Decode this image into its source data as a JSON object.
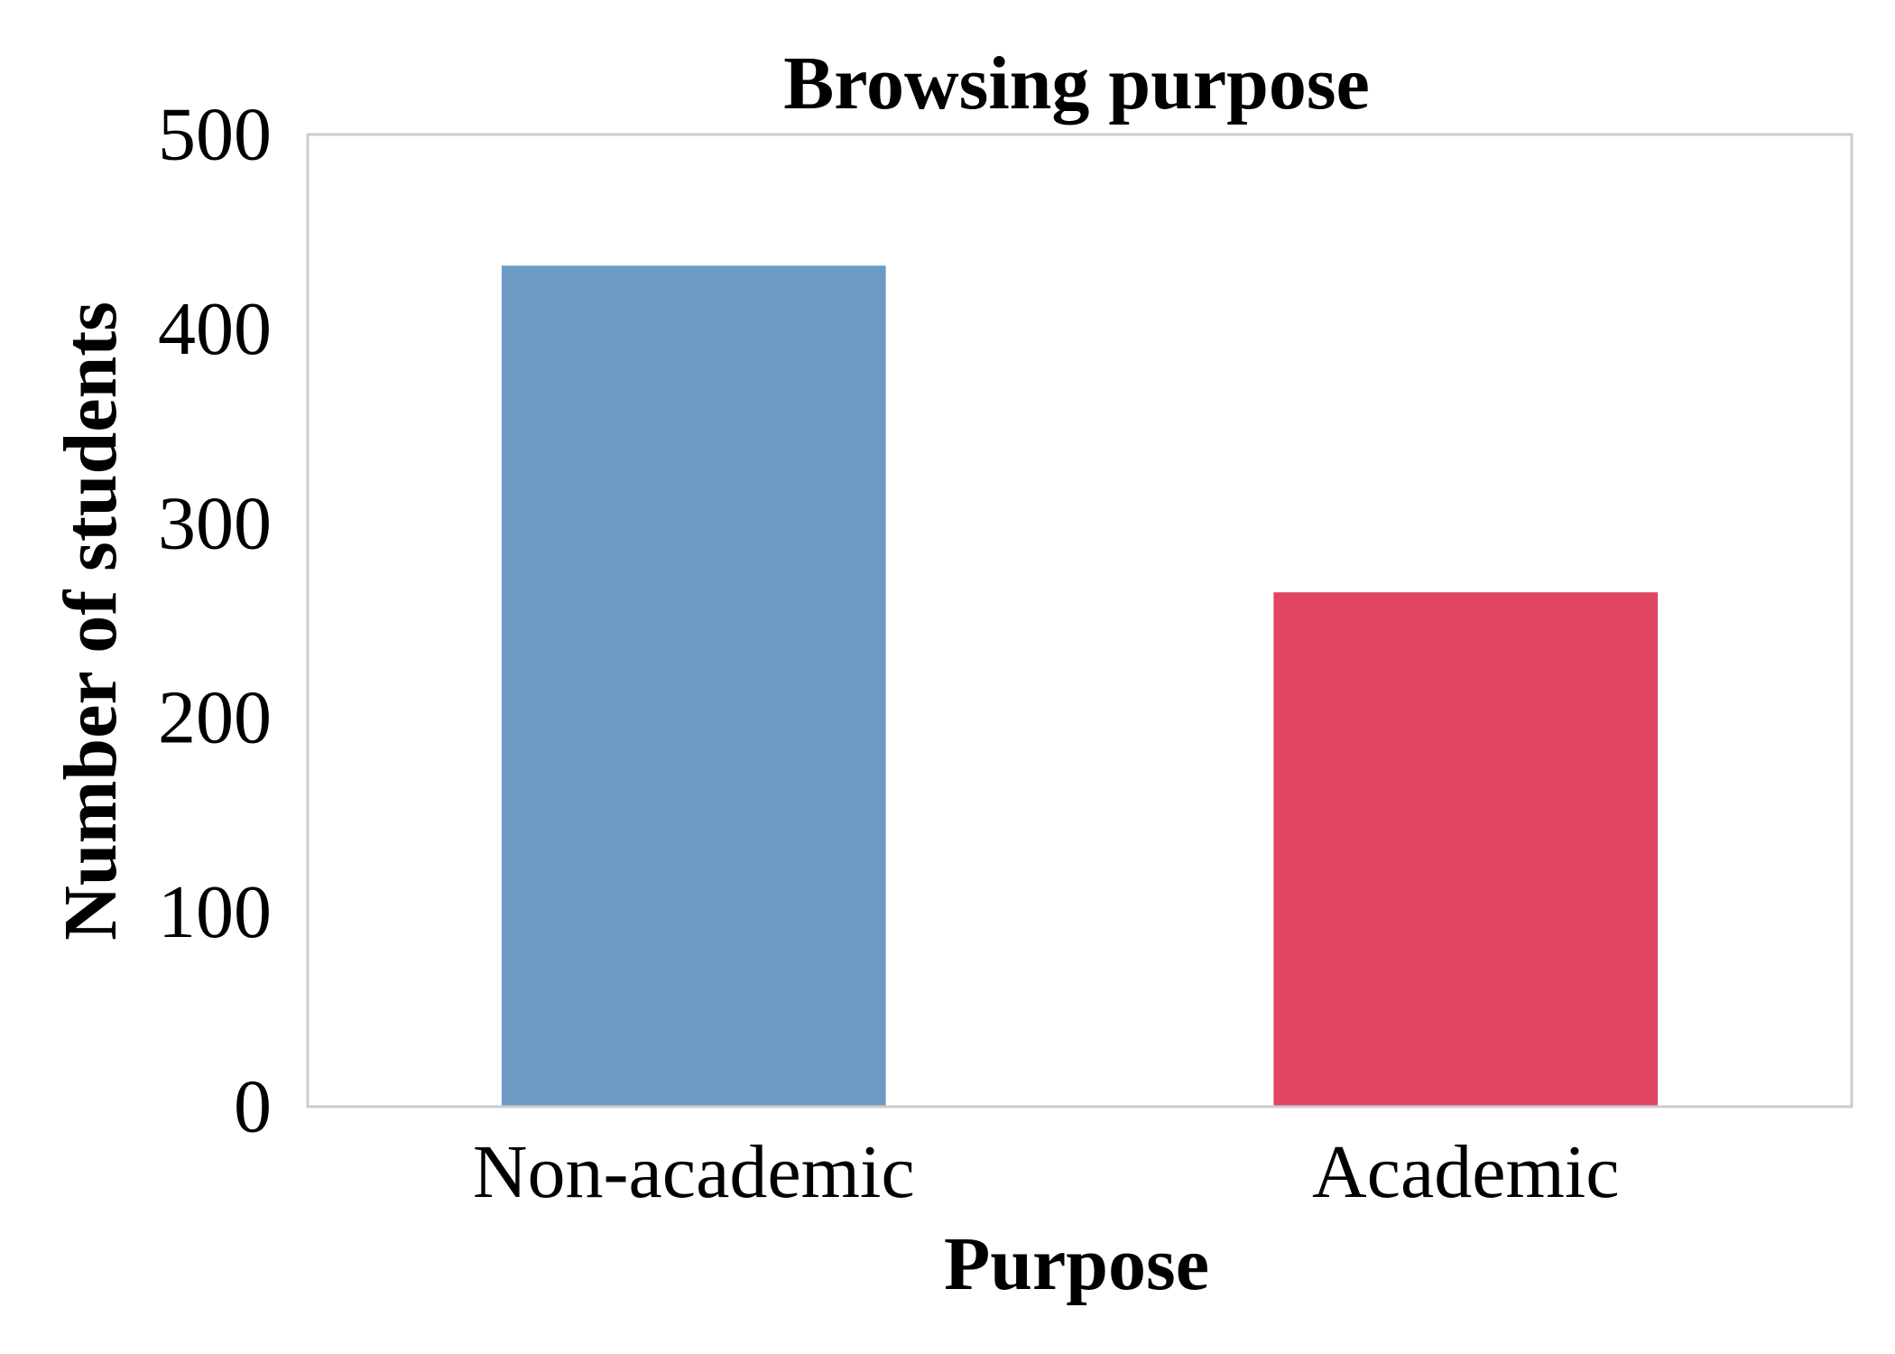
{
  "chart_data": {
    "type": "bar",
    "title": "Browsing purpose",
    "xlabel": "Purpose",
    "ylabel": "Number of students",
    "categories": [
      "Non-academic",
      "Academic"
    ],
    "values": [
      433,
      265
    ],
    "colors": [
      "#6b9bc3",
      "#e04563"
    ],
    "ylim": [
      0,
      500
    ],
    "yticks": [
      0,
      100,
      200,
      300,
      400,
      500
    ],
    "grid": false,
    "legend": "none",
    "frame_color": "#cccccc"
  }
}
